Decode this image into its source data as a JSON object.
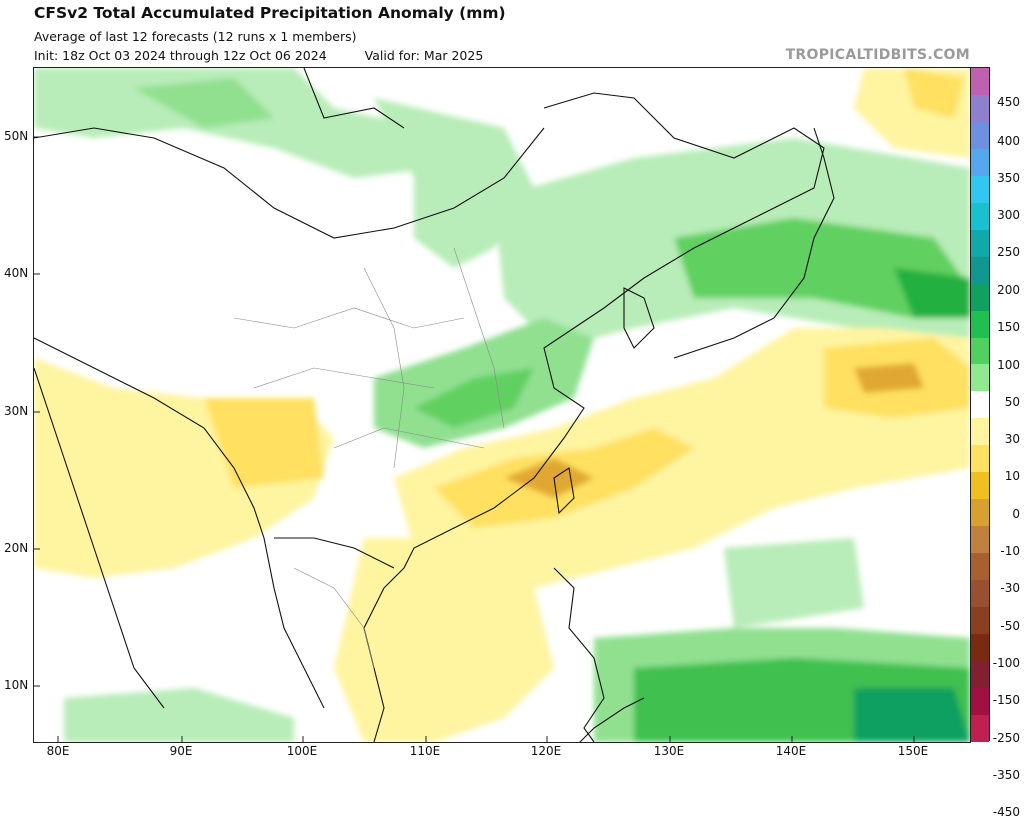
{
  "header": {
    "title": "CFSv2 Total Accumulated Precipitation Anomaly (mm)",
    "subtitle": "Average of last 12 forecasts (12 runs x 1 members)",
    "init_text": "Init: 18z Oct 03 2024 through 12z Oct 06 2024",
    "valid_text": "Valid for: Mar 2025",
    "brand": "TROPICALTIDBITS.COM"
  },
  "map": {
    "lat_labels": [
      "50N",
      "40N",
      "30N",
      "20N",
      "10N"
    ],
    "lon_labels": [
      "80E",
      "90E",
      "100E",
      "110E",
      "120E",
      "130E",
      "140E",
      "150E"
    ]
  },
  "colorbar": {
    "labels": [
      "450",
      "400",
      "350",
      "300",
      "250",
      "200",
      "150",
      "100",
      "50",
      "30",
      "10",
      "0",
      "-10",
      "-30",
      "-50",
      "-100",
      "-150",
      "-250",
      "-350",
      "-450"
    ],
    "colors": [
      "#c060b0",
      "#8f80cf",
      "#6f90df",
      "#55a8ef",
      "#30c8f0",
      "#18c0d0",
      "#10a8a8",
      "#109890",
      "#10a060",
      "#20c050",
      "#50d060",
      "#90e890",
      "#ffffff",
      "#fff4a0",
      "#ffe060",
      "#f0c020",
      "#d8a030",
      "#c08040",
      "#a86030",
      "#985030",
      "#884020",
      "#7a2a10",
      "#802030",
      "#a01040",
      "#c02050"
    ],
    "colors_note": ""
  }
}
